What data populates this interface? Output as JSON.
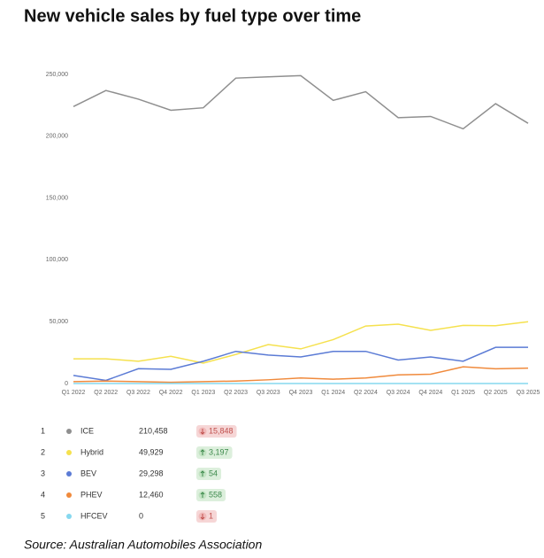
{
  "chart_data": {
    "type": "line",
    "title": "New vehicle sales by fuel type over time",
    "source": "Source: Australian Automobiles Association",
    "categories": [
      "Q1 2022",
      "Q2 2022",
      "Q3 2022",
      "Q4 2022",
      "Q1 2023",
      "Q2 2023",
      "Q3 2023",
      "Q4 2023",
      "Q1 2024",
      "Q2 2024",
      "Q3 2024",
      "Q4 2024",
      "Q1 2025",
      "Q2 2025",
      "Q3 2025"
    ],
    "ylim": [
      0,
      250000
    ],
    "yticks": [
      0,
      {
        "value": 50000,
        "label": "50,000"
      },
      {
        "value": 100000,
        "label": "100,000"
      },
      {
        "value": 150000,
        "label": "150,000"
      },
      {
        "value": 200000,
        "label": "200,000"
      },
      {
        "value": 250000,
        "label": "250,000"
      }
    ],
    "grid": false,
    "series": [
      {
        "name": "ICE",
        "color": "#8f8f8f",
        "rank": 1,
        "latest_label": "210,458",
        "change": {
          "value": -15848,
          "label": "15,848"
        },
        "values": [
          224000,
          237000,
          230000,
          221000,
          223000,
          247000,
          248000,
          249000,
          229000,
          236000,
          215000,
          216000,
          206000,
          226306,
          210458
        ]
      },
      {
        "name": "Hybrid",
        "color": "#f5e14e",
        "rank": 2,
        "latest_label": "49,929",
        "change": {
          "value": 3197,
          "label": "3,197"
        },
        "values": [
          20000,
          20000,
          18000,
          22000,
          16500,
          23500,
          31500,
          28000,
          35500,
          46500,
          48000,
          43000,
          47000,
          46732,
          49929
        ]
      },
      {
        "name": "BEV",
        "color": "#5b7bd5",
        "rank": 3,
        "latest_label": "29,298",
        "change": {
          "value": 54,
          "label": "54"
        },
        "values": [
          6500,
          2500,
          12000,
          11500,
          18000,
          26000,
          23000,
          21500,
          26000,
          26000,
          19000,
          21500,
          18000,
          29244,
          29298
        ]
      },
      {
        "name": "PHEV",
        "color": "#f08a3c",
        "rank": 4,
        "latest_label": "12,460",
        "change": {
          "value": 558,
          "label": "558"
        },
        "values": [
          1500,
          2000,
          1500,
          1000,
          1500,
          2000,
          3000,
          4500,
          3500,
          4500,
          7000,
          7500,
          13500,
          11902,
          12460
        ]
      },
      {
        "name": "HFCEV",
        "color": "#86d8ef",
        "rank": 5,
        "latest_label": "0",
        "change": {
          "value": -1,
          "label": "1"
        },
        "values": [
          0,
          0,
          0,
          0,
          0,
          0,
          0,
          0,
          0,
          0,
          0,
          0,
          0,
          1,
          0
        ]
      }
    ]
  }
}
